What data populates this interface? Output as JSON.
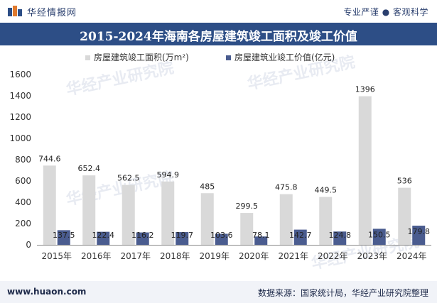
{
  "header": {
    "brand": "华经情报网",
    "slogan": "专业严谨 ● 客观科学"
  },
  "footer": {
    "site": "www.huaon.com",
    "source_label": "数据来源：",
    "source": "国家统计局，华经产业研究院整理"
  },
  "watermark": "华经产业研究院",
  "colors": {
    "title_bg": "#2d4e86",
    "series_area": "#d9d9d9",
    "series_value": "#4a5c8f",
    "footer_bg": "#f1f3f8"
  },
  "chart_data": {
    "type": "bar",
    "title": "2015-2024年海南各房屋建筑竣工面积及竣工价值",
    "categories": [
      "2015年",
      "2016年",
      "2017年",
      "2018年",
      "2019年",
      "2020年",
      "2021年",
      "2022年",
      "2023年",
      "2024年"
    ],
    "series": [
      {
        "name": "房屋建筑竣工面积(万m²)",
        "values": [
          744.6,
          652.4,
          562.5,
          594.9,
          485,
          299.5,
          475.8,
          449.5,
          1396,
          536
        ],
        "labels": [
          "744.6",
          "652.4",
          "562.5",
          "594.9",
          "485",
          "299.5",
          "475.8",
          "449.5",
          "1396",
          "536"
        ]
      },
      {
        "name": "房屋建筑业竣工价值(亿元)",
        "values": [
          137.5,
          122.4,
          116.2,
          119.7,
          103.6,
          78.1,
          142.7,
          124.8,
          150.5,
          179.8
        ],
        "labels": [
          "137.5",
          "122.4",
          "116.2",
          "119.7",
          "103.6",
          "78.1",
          "142.7",
          "124.8",
          "150.5",
          "179.8"
        ]
      }
    ],
    "ylim": [
      0,
      1600
    ],
    "yticks": [
      0,
      200,
      400,
      600,
      800,
      1000,
      1200,
      1400,
      1600
    ],
    "grid": false,
    "legend": "top-center"
  }
}
